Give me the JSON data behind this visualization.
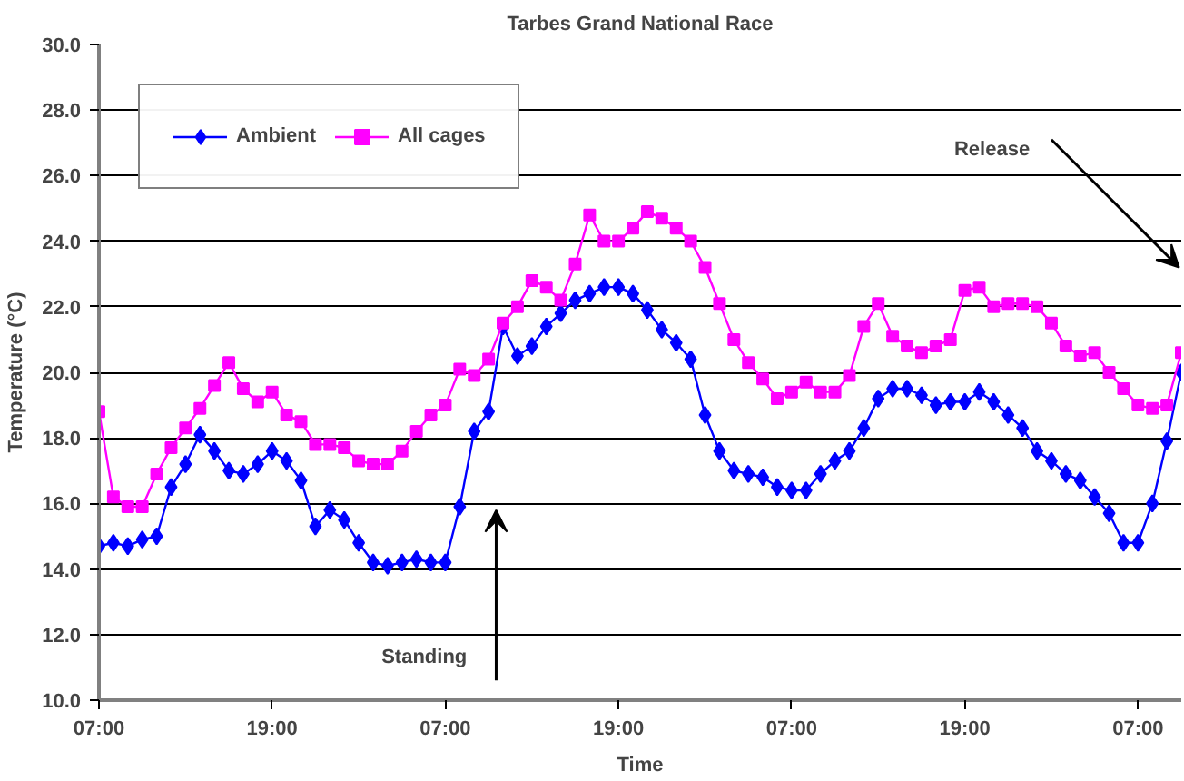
{
  "chart_data": {
    "type": "line",
    "title": "Tarbes Grand National Race",
    "xlabel": "Time",
    "ylabel": "Temperature (°C)",
    "categories": [
      "07:00",
      null,
      null,
      null,
      null,
      null,
      null,
      null,
      null,
      null,
      null,
      null,
      "19:00",
      null,
      null,
      null,
      null,
      null,
      null,
      null,
      null,
      null,
      null,
      null,
      "07:00",
      null,
      null,
      null,
      null,
      null,
      null,
      null,
      null,
      null,
      null,
      null,
      "19:00",
      null,
      null,
      null,
      null,
      null,
      null,
      null,
      null,
      null,
      null,
      null,
      "07:00",
      null,
      null,
      null,
      null,
      null,
      null,
      null,
      null,
      null,
      null,
      null,
      "19:00",
      null,
      null,
      null,
      null,
      null,
      null,
      null,
      null,
      null,
      null,
      null,
      "07:00",
      null,
      null,
      null
    ],
    "series": [
      {
        "name": "Ambient",
        "color": "#0000ff",
        "marker": "diamond",
        "values": [
          14.7,
          14.8,
          14.7,
          14.9,
          15.0,
          16.5,
          17.2,
          18.1,
          17.6,
          17.0,
          16.9,
          17.2,
          17.6,
          17.3,
          16.7,
          15.3,
          15.8,
          15.5,
          14.8,
          14.2,
          14.1,
          14.2,
          14.3,
          14.2,
          14.2,
          15.9,
          18.2,
          18.8,
          21.4,
          20.5,
          20.8,
          21.4,
          21.8,
          22.2,
          22.4,
          22.6,
          22.6,
          22.4,
          21.9,
          21.3,
          20.9,
          20.4,
          18.7,
          17.6,
          17.0,
          16.9,
          16.8,
          16.5,
          16.4,
          16.4,
          16.9,
          17.3,
          17.6,
          18.3,
          19.2,
          19.5,
          19.5,
          19.3,
          19.0,
          19.1,
          19.1,
          19.4,
          19.1,
          18.7,
          18.3,
          17.6,
          17.3,
          16.9,
          16.7,
          16.2,
          15.7,
          14.8,
          14.8,
          16.0,
          17.9,
          20.0
        ]
      },
      {
        "name": "All cages",
        "color": "#ff00ff",
        "marker": "square",
        "values": [
          18.8,
          16.2,
          15.9,
          15.9,
          16.9,
          17.7,
          18.3,
          18.9,
          19.6,
          20.3,
          19.5,
          19.1,
          19.4,
          18.7,
          18.5,
          17.8,
          17.8,
          17.7,
          17.3,
          17.2,
          17.2,
          17.6,
          18.2,
          18.7,
          19.0,
          20.1,
          19.9,
          20.4,
          21.5,
          22.0,
          22.8,
          22.6,
          22.2,
          23.3,
          24.8,
          24.0,
          24.0,
          24.4,
          24.9,
          24.7,
          24.4,
          24.0,
          23.2,
          22.1,
          21.0,
          20.3,
          19.8,
          19.2,
          19.4,
          19.7,
          19.4,
          19.4,
          19.9,
          21.4,
          22.1,
          21.1,
          20.8,
          20.6,
          20.8,
          21.0,
          22.5,
          22.6,
          22.0,
          22.1,
          22.1,
          22.0,
          21.5,
          20.8,
          20.5,
          20.6,
          20.0,
          19.5,
          19.0,
          18.9,
          19.0,
          20.6
        ]
      }
    ],
    "ylim": [
      10,
      30
    ],
    "yticks": [
      {
        "value": 10,
        "label": "10.0"
      },
      {
        "value": 12,
        "label": "12.0"
      },
      {
        "value": 14,
        "label": "14.0"
      },
      {
        "value": 16,
        "label": "16.0"
      },
      {
        "value": 18,
        "label": "18.0"
      },
      {
        "value": 20,
        "label": "20.0"
      },
      {
        "value": 22,
        "label": "22.0"
      },
      {
        "value": 24,
        "label": "24.0"
      },
      {
        "value": 26,
        "label": "26.0"
      },
      {
        "value": 28,
        "label": "28.0"
      },
      {
        "value": 30,
        "label": "30.0"
      }
    ],
    "grid": "y",
    "legend": "top left",
    "line_style": "solid",
    "annotations": [
      "Standing",
      "Release"
    ]
  }
}
